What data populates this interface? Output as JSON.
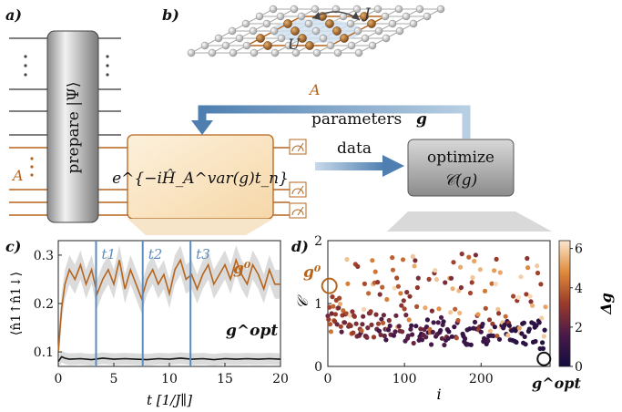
{
  "panels": {
    "a": "a)",
    "b": "b)",
    "c": "c)",
    "d": "d)"
  },
  "panel_a": {
    "prepare_label": "prepare |Ψ⟩",
    "subsystem_label": "A"
  },
  "panel_b": {
    "U_label": "U",
    "J_label": "J",
    "subsystem_label": "A"
  },
  "flow": {
    "evolution_label": "e^{−iĤ_A^var(g)t_n}",
    "parameters_label": "parameters",
    "parameters_symbol": "g",
    "data_label": "data",
    "optimize_line1": "optimize",
    "optimize_line2": "𝒞(g)"
  },
  "colors": {
    "orange": "#b5651d",
    "blue_arrow": "#4e7fb0",
    "time_line": "#5b8bbf",
    "gray_box": "#cfcfcf",
    "navy": "#1a1245"
  },
  "chart_data": [
    {
      "type": "line",
      "panel": "c",
      "ylabel": "⟨n̂1↑n̂1↓⟩",
      "xlabel": "t [1/J∥]",
      "xlim": [
        0,
        20
      ],
      "ylim": [
        0.07,
        0.33
      ],
      "xticks": [
        0,
        5,
        10,
        15,
        20
      ],
      "yticks": [
        0.1,
        0.2,
        0.3
      ],
      "vlines": [
        {
          "label": "t1",
          "x": 3.4
        },
        {
          "label": "t2",
          "x": 7.6
        },
        {
          "label": "t3",
          "x": 11.9
        }
      ],
      "series": [
        {
          "name": "g0",
          "color": "#b5651d",
          "band": 0.03,
          "x": [
            0,
            0.3,
            0.6,
            1,
            1.5,
            2,
            2.5,
            3,
            3.5,
            4,
            4.5,
            5,
            5.5,
            6,
            6.5,
            7,
            7.5,
            8,
            8.5,
            9,
            9.5,
            10,
            10.5,
            11,
            11.5,
            12,
            12.5,
            13,
            13.5,
            14,
            14.5,
            15,
            15.5,
            16,
            16.5,
            17,
            17.5,
            18,
            18.5,
            19,
            19.5,
            20
          ],
          "y": [
            0.1,
            0.19,
            0.24,
            0.27,
            0.25,
            0.28,
            0.24,
            0.27,
            0.22,
            0.25,
            0.27,
            0.24,
            0.29,
            0.23,
            0.27,
            0.24,
            0.21,
            0.25,
            0.27,
            0.24,
            0.26,
            0.22,
            0.27,
            0.29,
            0.25,
            0.26,
            0.23,
            0.26,
            0.28,
            0.24,
            0.26,
            0.28,
            0.25,
            0.29,
            0.26,
            0.24,
            0.28,
            0.26,
            0.23,
            0.27,
            0.24,
            0.24
          ]
        },
        {
          "name": "gopt",
          "color": "#111111",
          "band": 0.012,
          "x": [
            0,
            0.3,
            0.6,
            1,
            2,
            3,
            4,
            5,
            6,
            7,
            8,
            9,
            10,
            11,
            12,
            13,
            14,
            15,
            16,
            17,
            18,
            19,
            20
          ],
          "y": [
            0.08,
            0.09,
            0.087,
            0.085,
            0.086,
            0.084,
            0.087,
            0.085,
            0.086,
            0.085,
            0.084,
            0.086,
            0.085,
            0.087,
            0.085,
            0.086,
            0.084,
            0.086,
            0.085,
            0.086,
            0.085,
            0.086,
            0.085
          ]
        }
      ],
      "series_labels": {
        "g0": "g⁰",
        "gopt": "g^opt"
      }
    },
    {
      "type": "scatter",
      "panel": "d",
      "ylabel": "𝒞",
      "xlabel": "i",
      "xlim": [
        0,
        290
      ],
      "ylim": [
        0,
        2
      ],
      "xticks": [
        0,
        100,
        200
      ],
      "yticks": [
        0,
        1,
        2
      ],
      "colorbar": {
        "label": "Δg",
        "range": [
          0,
          6.4
        ],
        "ticks": [
          0,
          2,
          4,
          6
        ]
      },
      "markers": {
        "start_label": "g⁰",
        "end_label": "g^opt"
      },
      "points_desc": "cost vs iteration, colored by Δg (dark navy = small, light tan = large)"
    }
  ],
  "tick_labels": {
    "c_x": [
      "0",
      "5",
      "10",
      "15",
      "20"
    ],
    "c_y": [
      "0.1",
      "0.2",
      "0.3"
    ],
    "d_x": [
      "0",
      "100",
      "200"
    ],
    "d_y": [
      "0",
      "1",
      "2"
    ],
    "cbar": [
      "0",
      "2",
      "4",
      "6"
    ]
  }
}
